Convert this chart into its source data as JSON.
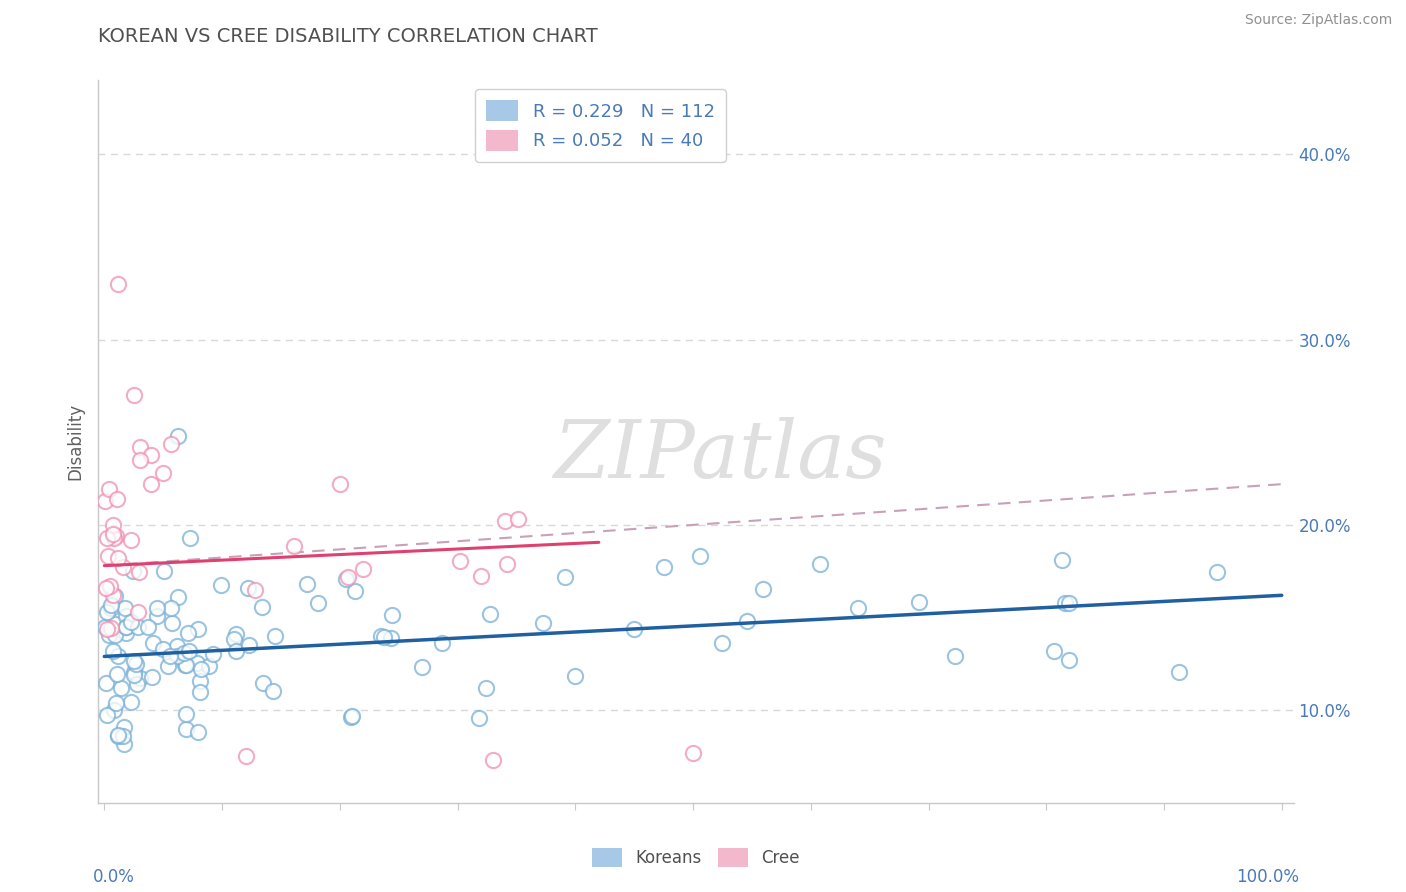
{
  "title": "KOREAN VS CREE DISABILITY CORRELATION CHART",
  "source": "Source: ZipAtlas.com",
  "ylabel": "Disability",
  "xlim": [
    0,
    1.0
  ],
  "ylim": [
    0.05,
    0.44
  ],
  "yticks": [
    0.1,
    0.2,
    0.3,
    0.4
  ],
  "ytick_labels": [
    "10.0%",
    "20.0%",
    "30.0%",
    "40.0%"
  ],
  "legend_items": [
    {
      "label": "R = 0.229   N = 112",
      "color": "#a8c8e8"
    },
    {
      "label": "R = 0.052   N = 40",
      "color": "#f4b8cc"
    }
  ],
  "watermark": "ZIPatlas",
  "korean_color": "#7ab0d8",
  "cree_color": "#f090b0",
  "korean_trend_color": "#2060a0",
  "cree_trend_color": "#e0406080",
  "dashed_line_color": "#c8a0b0",
  "title_color": "#404040",
  "axis_label_color": "#4a7ab8",
  "background_color": "#ffffff",
  "grid_color": "#d8d8d8",
  "korean_R": 0.229,
  "cree_R": 0.052,
  "korean_N": 112,
  "cree_N": 40,
  "korean_trend_start_y": 0.129,
  "korean_trend_end_y": 0.162,
  "cree_trend_start_y": 0.178,
  "cree_trend_end_y": 0.19,
  "dashed_trend_start_y": 0.178,
  "dashed_trend_end_y": 0.222
}
